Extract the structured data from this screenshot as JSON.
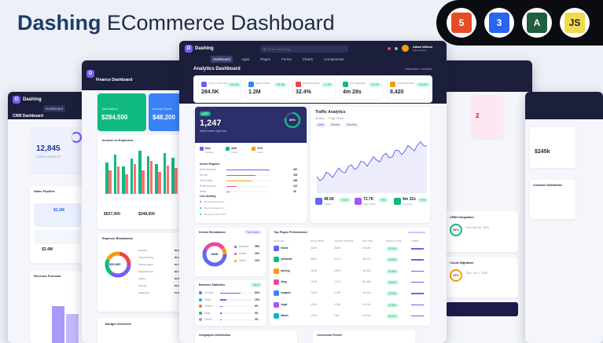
{
  "header": {
    "brand": "Dashing",
    "subtitle": "ECommerce Dashboard"
  },
  "tech": [
    {
      "name": "html5-icon",
      "label": "5",
      "color": "#e44d26"
    },
    {
      "name": "css3-icon",
      "label": "3",
      "color": "#2965f1"
    },
    {
      "name": "angular-icon",
      "label": "A",
      "color": "#1f5f3f"
    },
    {
      "name": "javascript-icon",
      "label": "JS",
      "color": "#f0db4f"
    }
  ],
  "app": {
    "brand": "Dashing",
    "search_placeholder": "Search anything...",
    "user": "Adam Wilson",
    "role": "Administrator",
    "nav": [
      "Dashboard",
      "Apps",
      "Pages",
      "Forms",
      "Charts",
      "Components"
    ]
  },
  "analytics": {
    "title": "Analytics Dashboard",
    "breadcrumb": "Dashboard > Analytics",
    "stats": [
      {
        "label": "TOTAL VISITORS",
        "value": "284.5K",
        "delta": "+12.5%"
      },
      {
        "label": "PAGE VIEWS",
        "value": "1.2M",
        "delta": "+8.3%"
      },
      {
        "label": "BOUNCE RATE",
        "value": "32.4%",
        "delta": "-2.1%"
      },
      {
        "label": "AVG SESSION",
        "value": "4m 28s",
        "delta": "+5.7%"
      },
      {
        "label": "CONVERSIONS",
        "value": "8,420",
        "delta": "+18.2%"
      }
    ],
    "live": {
      "badge": "LIVE",
      "value": "1,247",
      "sub": "Active users right now",
      "ring": "80%",
      "mini": [
        {
          "v": "644",
          "l": "Desktop"
        },
        {
          "v": "428",
          "l": "Mobile"
        },
        {
          "v": "175",
          "l": "Tablet"
        }
      ],
      "regions_title": "Active Regions",
      "regions": [
        {
          "n": "North America",
          "v": "487"
        },
        {
          "n": "Europe",
          "v": "326"
        },
        {
          "n": "Asia Pacific",
          "v": "284"
        },
        {
          "n": "South America",
          "v": "112"
        },
        {
          "n": "Africa",
          "v": "38"
        }
      ],
      "activity_title": "Live Activity",
      "activity": [
        "/products/laptop-pro",
        "/checkout/payment",
        "/blog/seo-guide-2024"
      ]
    },
    "traffic": {
      "title": "Traffic Analytics",
      "legend": [
        "Visitors",
        "Page Views"
      ],
      "tabs": [
        "Daily",
        "Weekly",
        "Monthly"
      ],
      "stats": [
        {
          "v": "48.5K",
          "l": "Visitors",
          "d": "+12%"
        },
        {
          "v": "72.7K",
          "l": "Page Views",
          "d": "+8%"
        },
        {
          "v": "4m 32s",
          "l": "Avg Time",
          "d": "+5%"
        }
      ]
    },
    "devices": {
      "title": "Device Breakdown",
      "filter": "This Month",
      "total": "284K",
      "items": [
        {
          "n": "Desktop",
          "v": "58%"
        },
        {
          "n": "Mobile",
          "v": "32%"
        },
        {
          "n": "Tablet",
          "v": "10%"
        }
      ]
    },
    "browsers": {
      "title": "Browser Statistics",
      "badge": "Top 5",
      "items": [
        {
          "n": "Chrome",
          "v": "64%"
        },
        {
          "n": "Safari",
          "v": "19%"
        },
        {
          "n": "Firefox",
          "v": "8%"
        },
        {
          "n": "Edge",
          "v": "5%"
        },
        {
          "n": "Others",
          "v": "4%"
        }
      ]
    },
    "pages": {
      "title": "Top Pages Performance",
      "link": "View Full Report",
      "cols": [
        "PAGE URL",
        "PAGE VIEWS",
        "UNIQUE VISITORS",
        "AVG TIME",
        "BOUNCE RATE",
        "TREND"
      ],
      "rows": [
        [
          "/home",
          "42,8K",
          "28,4K",
          "2m 45s",
          "32.1%"
        ],
        [
          "/products",
          "38,6K",
          "24,1K",
          "3m 12s",
          "28.5%"
        ],
        [
          "/pricing",
          "26,4K",
          "18,9K",
          "4m 05s",
          "22.8%"
        ],
        [
          "/blog",
          "19,2K",
          "14,7K",
          "5m 18s",
          "18.2%"
        ],
        [
          "/support",
          "16,8K",
          "12,3K",
          "3m 44s",
          "26.4%"
        ],
        [
          "/login",
          "14,5K",
          "11,8K",
          "1m 20s",
          "42.6%"
        ],
        [
          "/about",
          "12,4K",
          "9,8K",
          "2m 10s",
          "35.1%"
        ]
      ]
    },
    "bottom": [
      "Geographic Distribution",
      "Conversion Funnel"
    ]
  },
  "finance": {
    "title": "Finance Dashboard",
    "total_balance_label": "Total Balance",
    "total_balance": "$284,500",
    "monthly_label": "Monthly Growth",
    "monthly": "$48,200",
    "chart_title": "Income vs Expenses",
    "income": "$527,400",
    "expenses": "$348,600",
    "exp_title": "Expense Breakdown",
    "donut": "$31,800",
    "exp_items": [
      {
        "n": "Housing",
        "v": "$8,950"
      },
      {
        "n": "Food & Dining",
        "v": "$6,240"
      },
      {
        "n": "Transportation",
        "v": "$4,775"
      },
      {
        "n": "Entertainment",
        "v": "$3,150"
      },
      {
        "n": "Utilities",
        "v": "$2,880"
      },
      {
        "n": "Savings",
        "v": "$3,900"
      },
      {
        "n": "Healthcare",
        "v": "$1,905"
      }
    ],
    "budget": "Budget Overview"
  },
  "crm": {
    "brand": "Dashing",
    "title": "CRM Dashboard",
    "contacts": "12,845",
    "contacts_label": "TOTAL CONTACTS",
    "pipeline": "Sales Pipeline",
    "p1": "$1.2M",
    "p2": "$3.4M",
    "forecast": "Revenue Forecast"
  },
  "right": {
    "crm_integration": "CRM Integration",
    "cloud_migration": "Cloud Migration",
    "p1": "81%",
    "p2": "47%",
    "d1": "Due: Mar 30, 2026",
    "d2": "Due: Jun 1, 2026",
    "kpi": "$245k",
    "kpi2": "2",
    "cs": "Customer Satisfaction"
  }
}
